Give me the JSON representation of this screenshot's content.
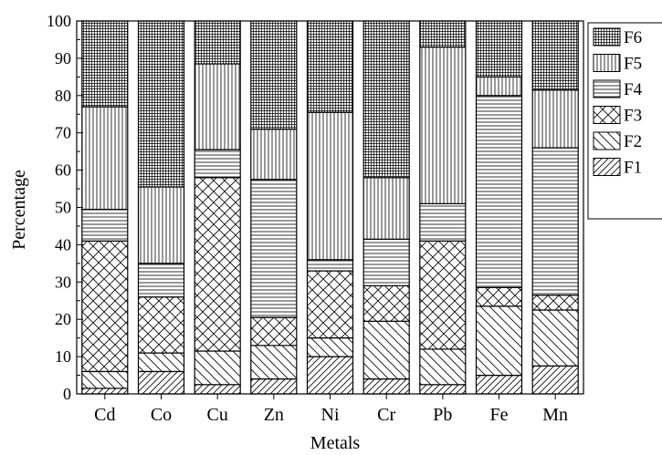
{
  "chart_data": {
    "type": "bar",
    "stacked": true,
    "title": "",
    "xlabel": "Metals",
    "ylabel": "Percentage",
    "ylim": [
      0,
      100
    ],
    "yticks": [
      0,
      10,
      20,
      30,
      40,
      50,
      60,
      70,
      80,
      90,
      100
    ],
    "categories": [
      "Cd",
      "Co",
      "Cu",
      "Zn",
      "Ni",
      "Cr",
      "Pb",
      "Fe",
      "Mn"
    ],
    "legend_position": "top-right",
    "grid": false,
    "series": [
      {
        "name": "F1",
        "pattern": "diagonal-up",
        "values": [
          1.5,
          6.0,
          2.5,
          4.0,
          10.0,
          4.0,
          2.5,
          5.0,
          7.5
        ]
      },
      {
        "name": "F2",
        "pattern": "diagonal-down",
        "values": [
          4.5,
          5.0,
          9.0,
          9.0,
          5.0,
          15.5,
          9.5,
          18.5,
          15.0
        ]
      },
      {
        "name": "F3",
        "pattern": "crosshatch",
        "values": [
          35.0,
          15.0,
          46.5,
          7.5,
          18.0,
          9.5,
          29.0,
          5.0,
          4.0
        ]
      },
      {
        "name": "F4",
        "pattern": "horizontal",
        "values": [
          8.5,
          9.0,
          7.5,
          37.0,
          3.0,
          12.5,
          10.0,
          51.5,
          39.5
        ]
      },
      {
        "name": "F5",
        "pattern": "vertical",
        "values": [
          27.5,
          20.5,
          23.0,
          13.5,
          39.5,
          16.5,
          42.0,
          5.0,
          15.5
        ]
      },
      {
        "name": "F6",
        "pattern": "grid",
        "values": [
          23.0,
          44.5,
          11.5,
          29.0,
          24.5,
          42.0,
          7.0,
          15.0,
          18.5
        ]
      }
    ],
    "colors": {
      "ink": "#000000",
      "background": "#ffffff"
    }
  }
}
